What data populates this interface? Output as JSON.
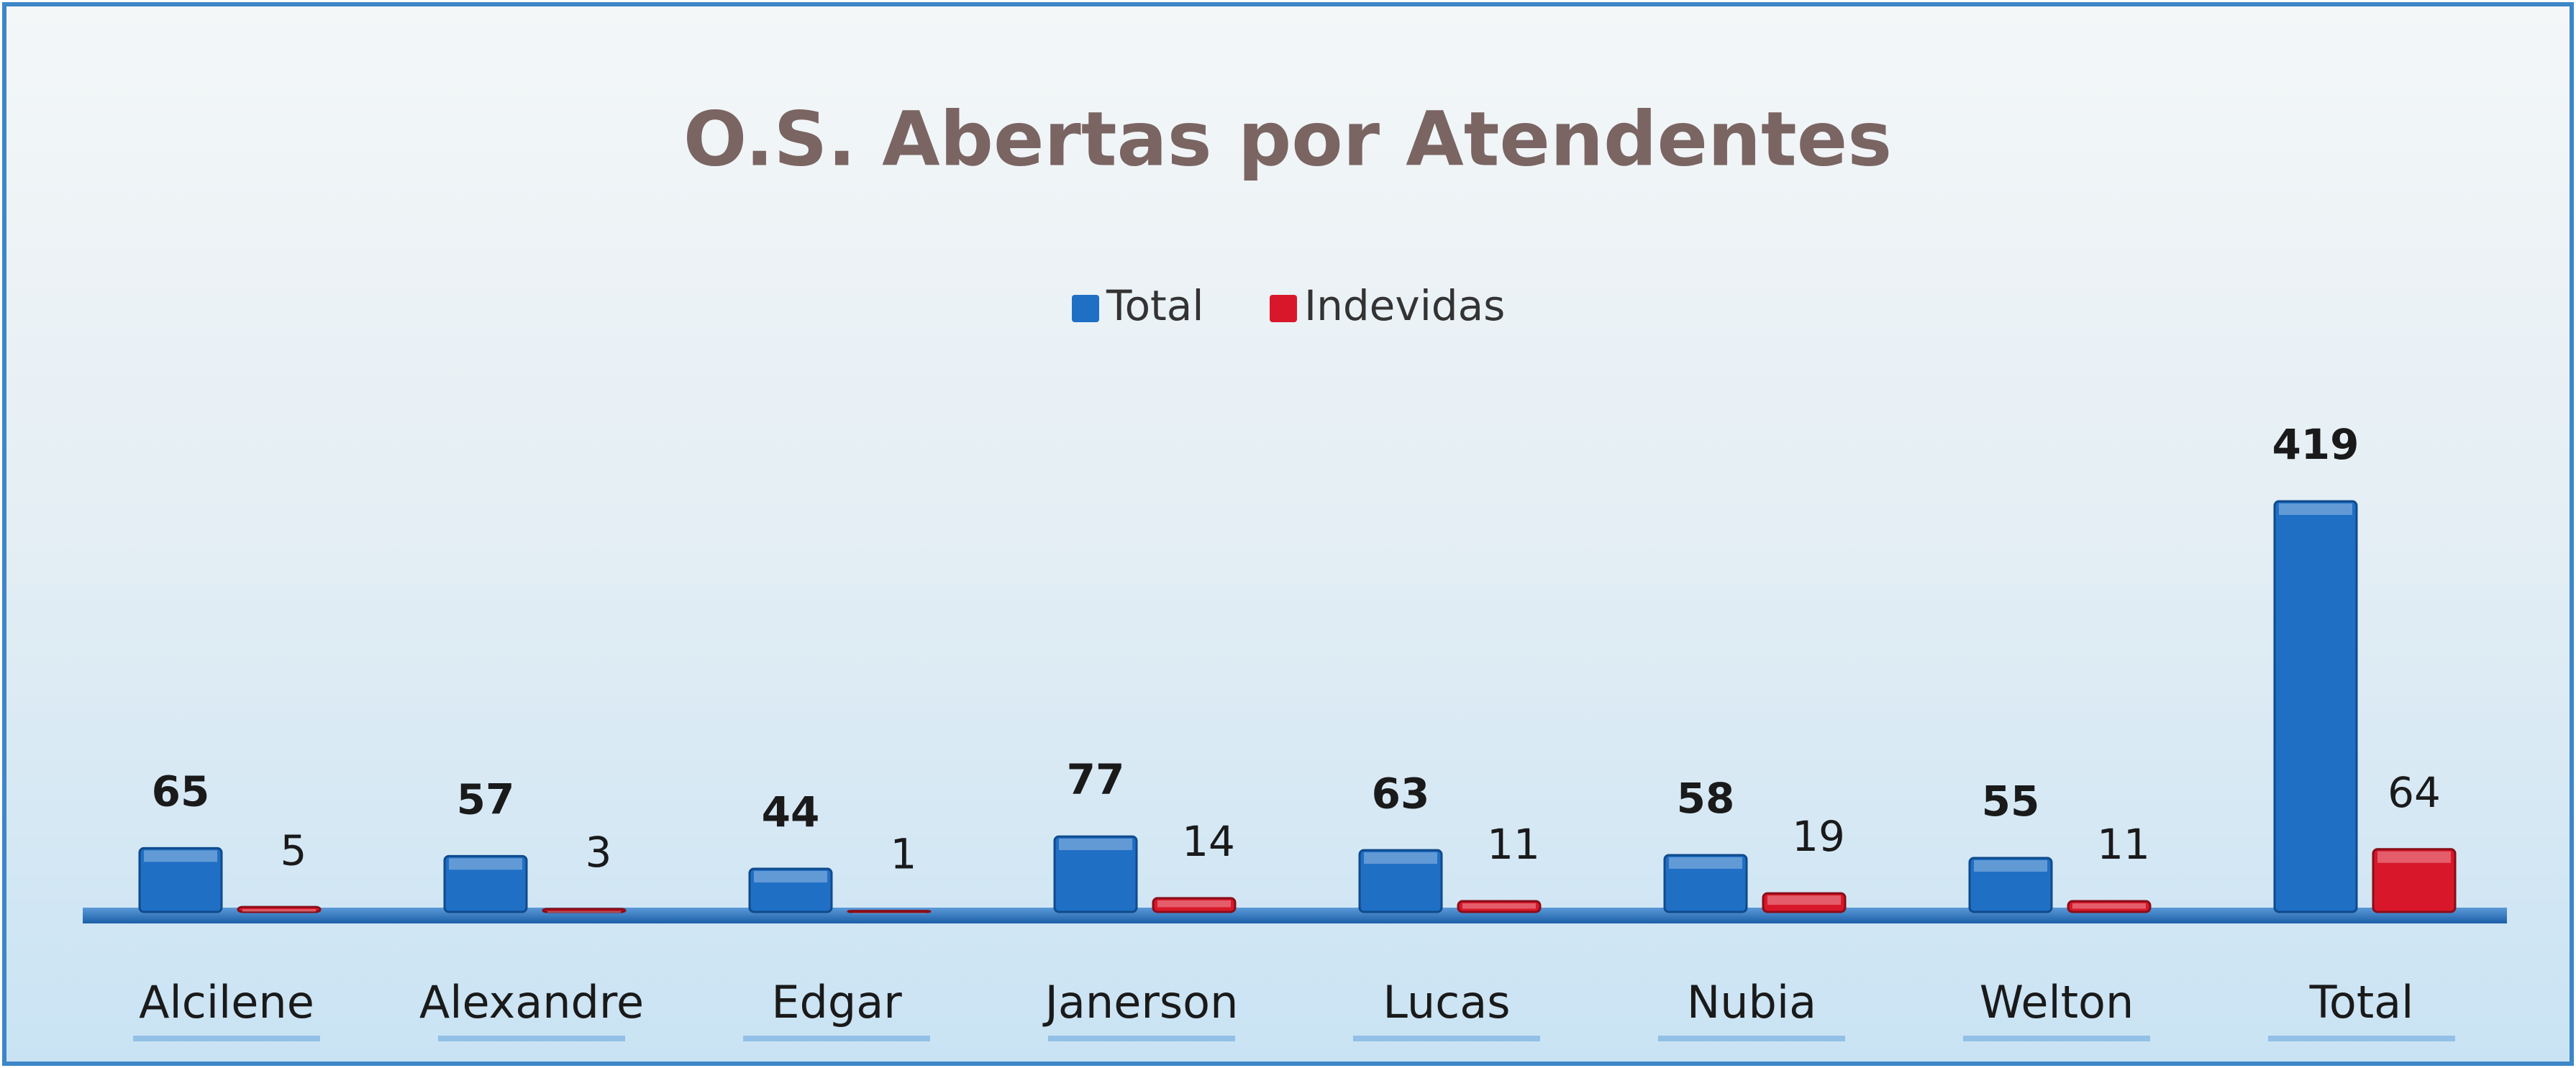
{
  "chart_data": {
    "type": "bar",
    "title": "O.S. Abertas por Atendentes",
    "categories": [
      "Alcilene",
      "Alexandre",
      "Edgar",
      "Janerson",
      "Lucas",
      "Nubia",
      "Welton",
      "Total"
    ],
    "series": [
      {
        "name": "Total",
        "color": "#1f6fc5",
        "values": [
          65,
          57,
          44,
          77,
          63,
          58,
          55,
          419
        ]
      },
      {
        "name": "Indevidas",
        "color": "#d8182a",
        "values": [
          5,
          3,
          1,
          14,
          11,
          19,
          11,
          64
        ]
      }
    ],
    "legend": "top"
  }
}
